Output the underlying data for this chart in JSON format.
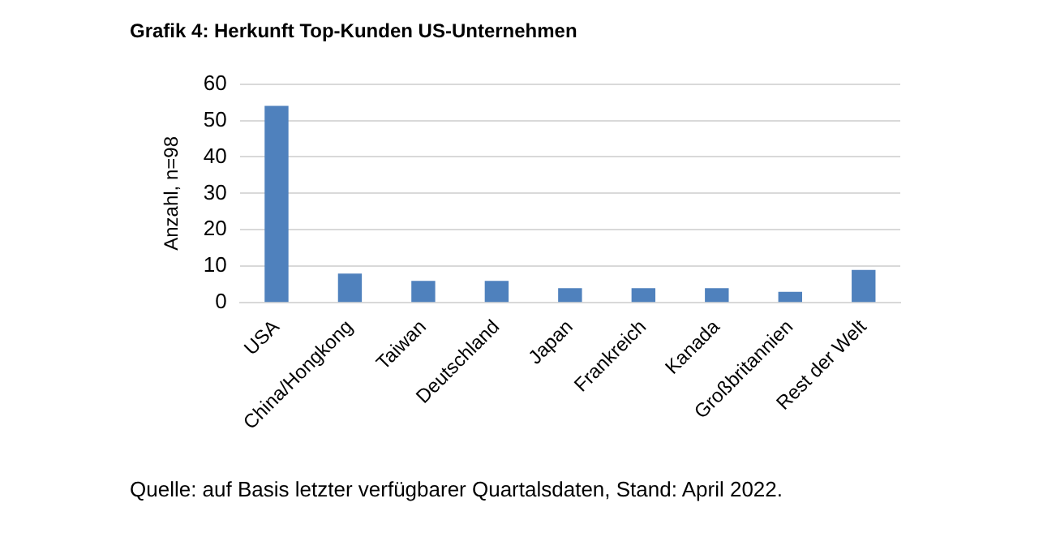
{
  "chart_data": {
    "type": "bar",
    "title": "Grafik 4: Herkunft Top-Kunden US-Unternehmen",
    "ylabel": "Anzahl, n=98",
    "categories": [
      "USA",
      "China/Hongkong",
      "Taiwan",
      "Deutschland",
      "Japan",
      "Frankreich",
      "Kanada",
      "Großbritannien",
      "Rest der Welt"
    ],
    "values": [
      54,
      8,
      6,
      6,
      4,
      4,
      4,
      3,
      9
    ],
    "color": "#4f81bd",
    "ylim": [
      0,
      60
    ],
    "yticks": [
      0,
      10,
      20,
      30,
      40,
      50,
      60
    ],
    "grid": "y",
    "legend": false,
    "annotations": [
      "Quelle: auf Basis letzter verfügbarer Quartalsdaten, Stand: April 2022."
    ]
  }
}
